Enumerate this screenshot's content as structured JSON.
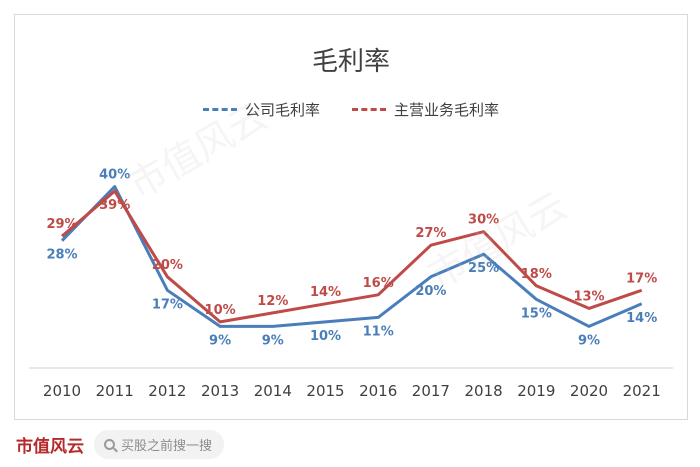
{
  "chart_data": {
    "type": "line",
    "title": "毛利率",
    "categories": [
      "2010",
      "2011",
      "2012",
      "2013",
      "2014",
      "2015",
      "2016",
      "2017",
      "2018",
      "2019",
      "2020",
      "2021"
    ],
    "series": [
      {
        "name": "公司毛利率",
        "color": "#4a7ebb",
        "values": [
          28,
          40,
          17,
          9,
          9,
          10,
          11,
          20,
          25,
          15,
          9,
          14
        ],
        "labels": [
          "28%",
          "40%",
          "17%",
          "9%",
          "9%",
          "10%",
          "11%",
          "20%",
          "25%",
          "15%",
          "9%",
          "14%"
        ]
      },
      {
        "name": "主营业务毛利率",
        "color": "#be4b48",
        "values": [
          29,
          39,
          20,
          10,
          12,
          14,
          16,
          27,
          30,
          18,
          13,
          17
        ],
        "labels": [
          "29%",
          "39%",
          "20%",
          "10%",
          "12%",
          "14%",
          "16%",
          "27%",
          "30%",
          "18%",
          "13%",
          "17%"
        ]
      }
    ],
    "ylim": [
      0,
      45
    ],
    "grid": false,
    "legend": "top-center"
  },
  "watermark": "市值风云",
  "footer": {
    "brand": "市值风云",
    "search_placeholder": "买股之前搜一搜"
  }
}
